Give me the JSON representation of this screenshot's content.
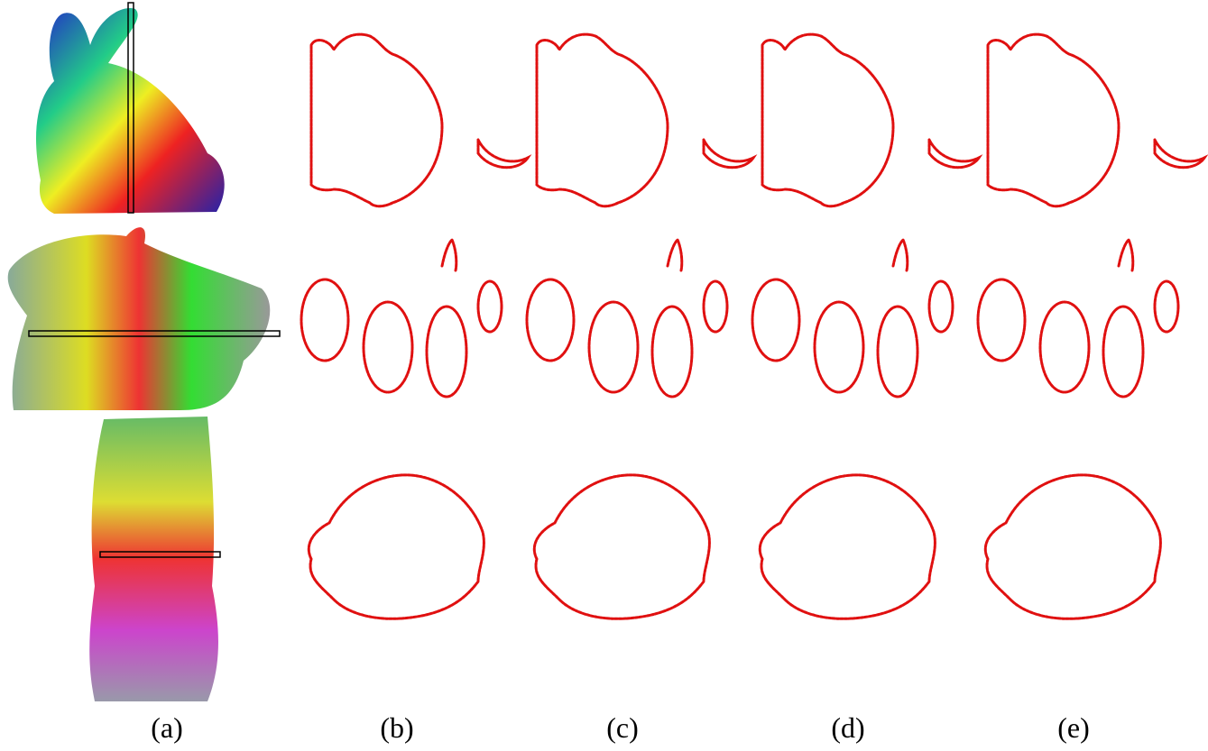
{
  "figure": {
    "labels": [
      "(a)",
      "(b)",
      "(c)",
      "(d)",
      "(e)"
    ]
  }
}
